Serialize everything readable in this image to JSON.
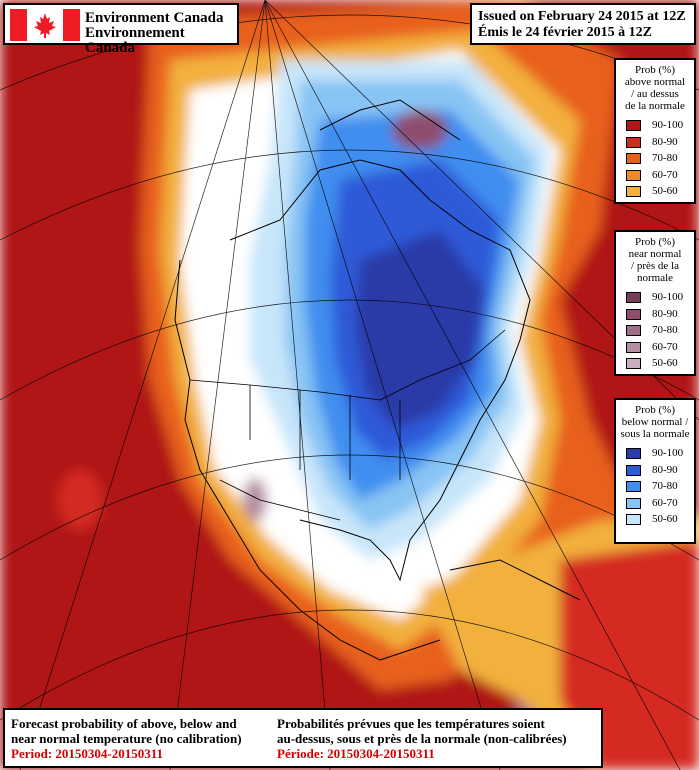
{
  "header": {
    "org_en": "Environment Canada",
    "org_fr": "Environnement Canada",
    "issued_en": "Issued on February 24 2015 at 12Z",
    "issued_fr": "Émis le 24 février 2015 à 12Z"
  },
  "legends": [
    {
      "title_lines": [
        "Prob (%)",
        "above normal",
        "/ au dessus",
        "de la normale"
      ],
      "items": [
        {
          "label": "90-100",
          "color": "#b01818"
        },
        {
          "label": "80-90",
          "color": "#d42a24"
        },
        {
          "label": "70-80",
          "color": "#e8601e"
        },
        {
          "label": "60-70",
          "color": "#ee8a2e"
        },
        {
          "label": "50-60",
          "color": "#f2b03c"
        }
      ]
    },
    {
      "title_lines": [
        "Prob (%)",
        "near normal",
        "/ près de la",
        "normale"
      ],
      "items": [
        {
          "label": "90-100",
          "color": "#7a3a5a"
        },
        {
          "label": "80-90",
          "color": "#8e4e6e"
        },
        {
          "label": "70-80",
          "color": "#a06e88"
        },
        {
          "label": "60-70",
          "color": "#b48ea2"
        },
        {
          "label": "50-60",
          "color": "#c8aebe"
        }
      ]
    },
    {
      "title_lines": [
        "Prob (%)",
        "below normal /",
        "sous la normale"
      ],
      "items": [
        {
          "label": "90-100",
          "color": "#2a3aa8"
        },
        {
          "label": "80-90",
          "color": "#2f5ad8"
        },
        {
          "label": "70-80",
          "color": "#3f8ef0"
        },
        {
          "label": "60-70",
          "color": "#88c4f4"
        },
        {
          "label": "50-60",
          "color": "#c8e6fa"
        }
      ]
    }
  ],
  "footer": {
    "en_line1": "Forecast probability of above, below and",
    "en_line2": "near normal temperature (no calibration)",
    "en_period": "Period: 20150304-20150311",
    "fr_line1": "Probabilités prévues que les températures soient",
    "fr_line2": "au-dessus, sous et près de la normale (non-calibrées)",
    "fr_period": "Période: 20150304-20150311"
  }
}
